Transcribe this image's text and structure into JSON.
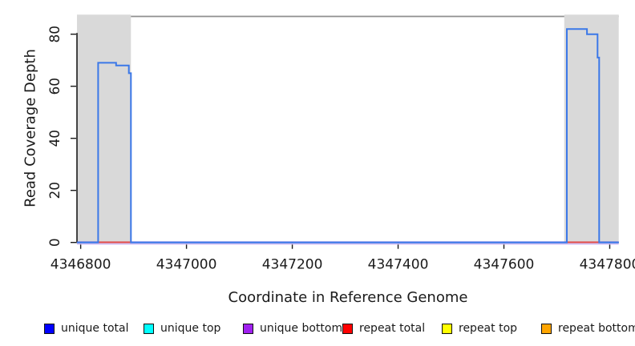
{
  "figure": {
    "background": "#ffffff"
  },
  "chart_data": {
    "type": "line",
    "subtype": "step-coverage",
    "title": "",
    "xlabel": "Coordinate in Reference Genome",
    "ylabel": "Read Coverage Depth",
    "xlim": [
      4346793,
      4347817
    ],
    "ylim": [
      0,
      87.5
    ],
    "x_ticks": [
      4346800,
      4347000,
      4347200,
      4347400,
      4347600,
      4347800
    ],
    "y_ticks": [
      0,
      20,
      40,
      60,
      80
    ],
    "grid": false,
    "legend_position": "bottom",
    "region_color": "#d9d9d9",
    "top_border_color": "#8f8f8f",
    "axis_color": "#1a1a1a",
    "baseline_underline_color": "#cbb8f0",
    "highlight_regions": [
      {
        "name": "left-read-region-band",
        "x1": 4346793,
        "x2": 4346895,
        "color": "#d9d9d9"
      },
      {
        "name": "right-read-region-band",
        "x1": 4347714,
        "x2": 4347817,
        "color": "#d9d9d9"
      }
    ],
    "series": [
      {
        "name": "unique total",
        "color": "#3b78e8",
        "type": "step",
        "points": [
          [
            4346793,
            0
          ],
          [
            4346833,
            0
          ],
          [
            4346833,
            69
          ],
          [
            4346867,
            69
          ],
          [
            4346867,
            68
          ],
          [
            4346891,
            68
          ],
          [
            4346891,
            65
          ],
          [
            4346895,
            65
          ],
          [
            4346895,
            0
          ],
          [
            4347719,
            0
          ],
          [
            4347719,
            82
          ],
          [
            4347757,
            82
          ],
          [
            4347757,
            80
          ],
          [
            4347777,
            80
          ],
          [
            4347777,
            71
          ],
          [
            4347780,
            71
          ],
          [
            4347780,
            0
          ],
          [
            4347817,
            0
          ]
        ]
      }
    ],
    "baseline_segments": [
      {
        "x1": 4346793,
        "x2": 4346833,
        "color": "#4a41d9"
      },
      {
        "x1": 4346833,
        "x2": 4346895,
        "color": "#e04848"
      },
      {
        "x1": 4346895,
        "x2": 4347719,
        "color": "#4a41d9"
      },
      {
        "x1": 4347719,
        "x2": 4347780,
        "color": "#e04848"
      },
      {
        "x1": 4347780,
        "x2": 4347817,
        "color": "#4a41d9"
      }
    ],
    "legend": [
      {
        "label": "unique total",
        "color": "#0000ff"
      },
      {
        "label": "unique top",
        "color": "#00ffff"
      },
      {
        "label": "unique bottom",
        "color": "#a020f0"
      },
      {
        "label": "repeat total",
        "color": "#ff0000"
      },
      {
        "label": "repeat top",
        "color": "#ffff00"
      },
      {
        "label": "repeat bottom",
        "color": "#ffa500"
      }
    ]
  }
}
